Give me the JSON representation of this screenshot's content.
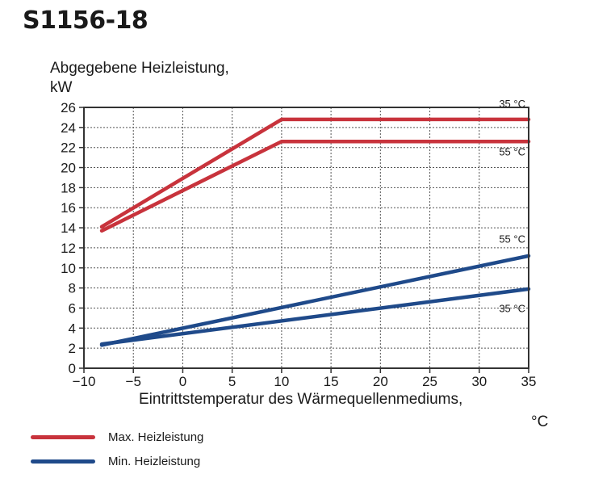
{
  "title": "S1156-18",
  "chart_data": {
    "type": "line",
    "ylabel_line1": "Abgegebene Heizleistung,",
    "ylabel_line2": "kW",
    "xlabel_line1": "Eintrittstemperatur des Wärmequellenmediums,",
    "xlabel_line2": "°C",
    "xlim": [
      -10,
      35
    ],
    "ylim": [
      0,
      26
    ],
    "xticks": [
      -10,
      -5,
      0,
      5,
      10,
      15,
      20,
      25,
      30,
      35
    ],
    "xtick_labels": [
      "−10",
      "−5",
      "0",
      "5",
      "10",
      "15",
      "20",
      "25",
      "30",
      "35"
    ],
    "yticks": [
      0,
      2,
      4,
      6,
      8,
      10,
      12,
      14,
      16,
      18,
      20,
      22,
      24,
      26
    ],
    "grid": true,
    "series": [
      {
        "name": "35 °C",
        "group": "Max. Heizleistung",
        "color": "#c8333c",
        "points": [
          [
            -8.2,
            14.1
          ],
          [
            10,
            24.8
          ],
          [
            35,
            24.8
          ]
        ]
      },
      {
        "name": "55 °C",
        "group": "Max. Heizleistung",
        "color": "#c8333c",
        "points": [
          [
            -8.2,
            13.7
          ],
          [
            10,
            22.6
          ],
          [
            35,
            22.6
          ]
        ]
      },
      {
        "name": "55 °C",
        "group": "Min. Heizleistung",
        "color": "#1f4a8a",
        "points": [
          [
            -8.2,
            2.3
          ],
          [
            35,
            11.2
          ]
        ]
      },
      {
        "name": "35 °C",
        "group": "Min. Heizleistung",
        "color": "#1f4a8a",
        "points": [
          [
            -8.2,
            2.4
          ],
          [
            35,
            7.9
          ]
        ]
      }
    ],
    "series_label_y": [
      26,
      21.2,
      12.5,
      5.6
    ]
  },
  "legend": [
    {
      "label": "Max. Heizleistung",
      "color": "#c8333c"
    },
    {
      "label": "Min. Heizleistung",
      "color": "#1f4a8a"
    }
  ]
}
